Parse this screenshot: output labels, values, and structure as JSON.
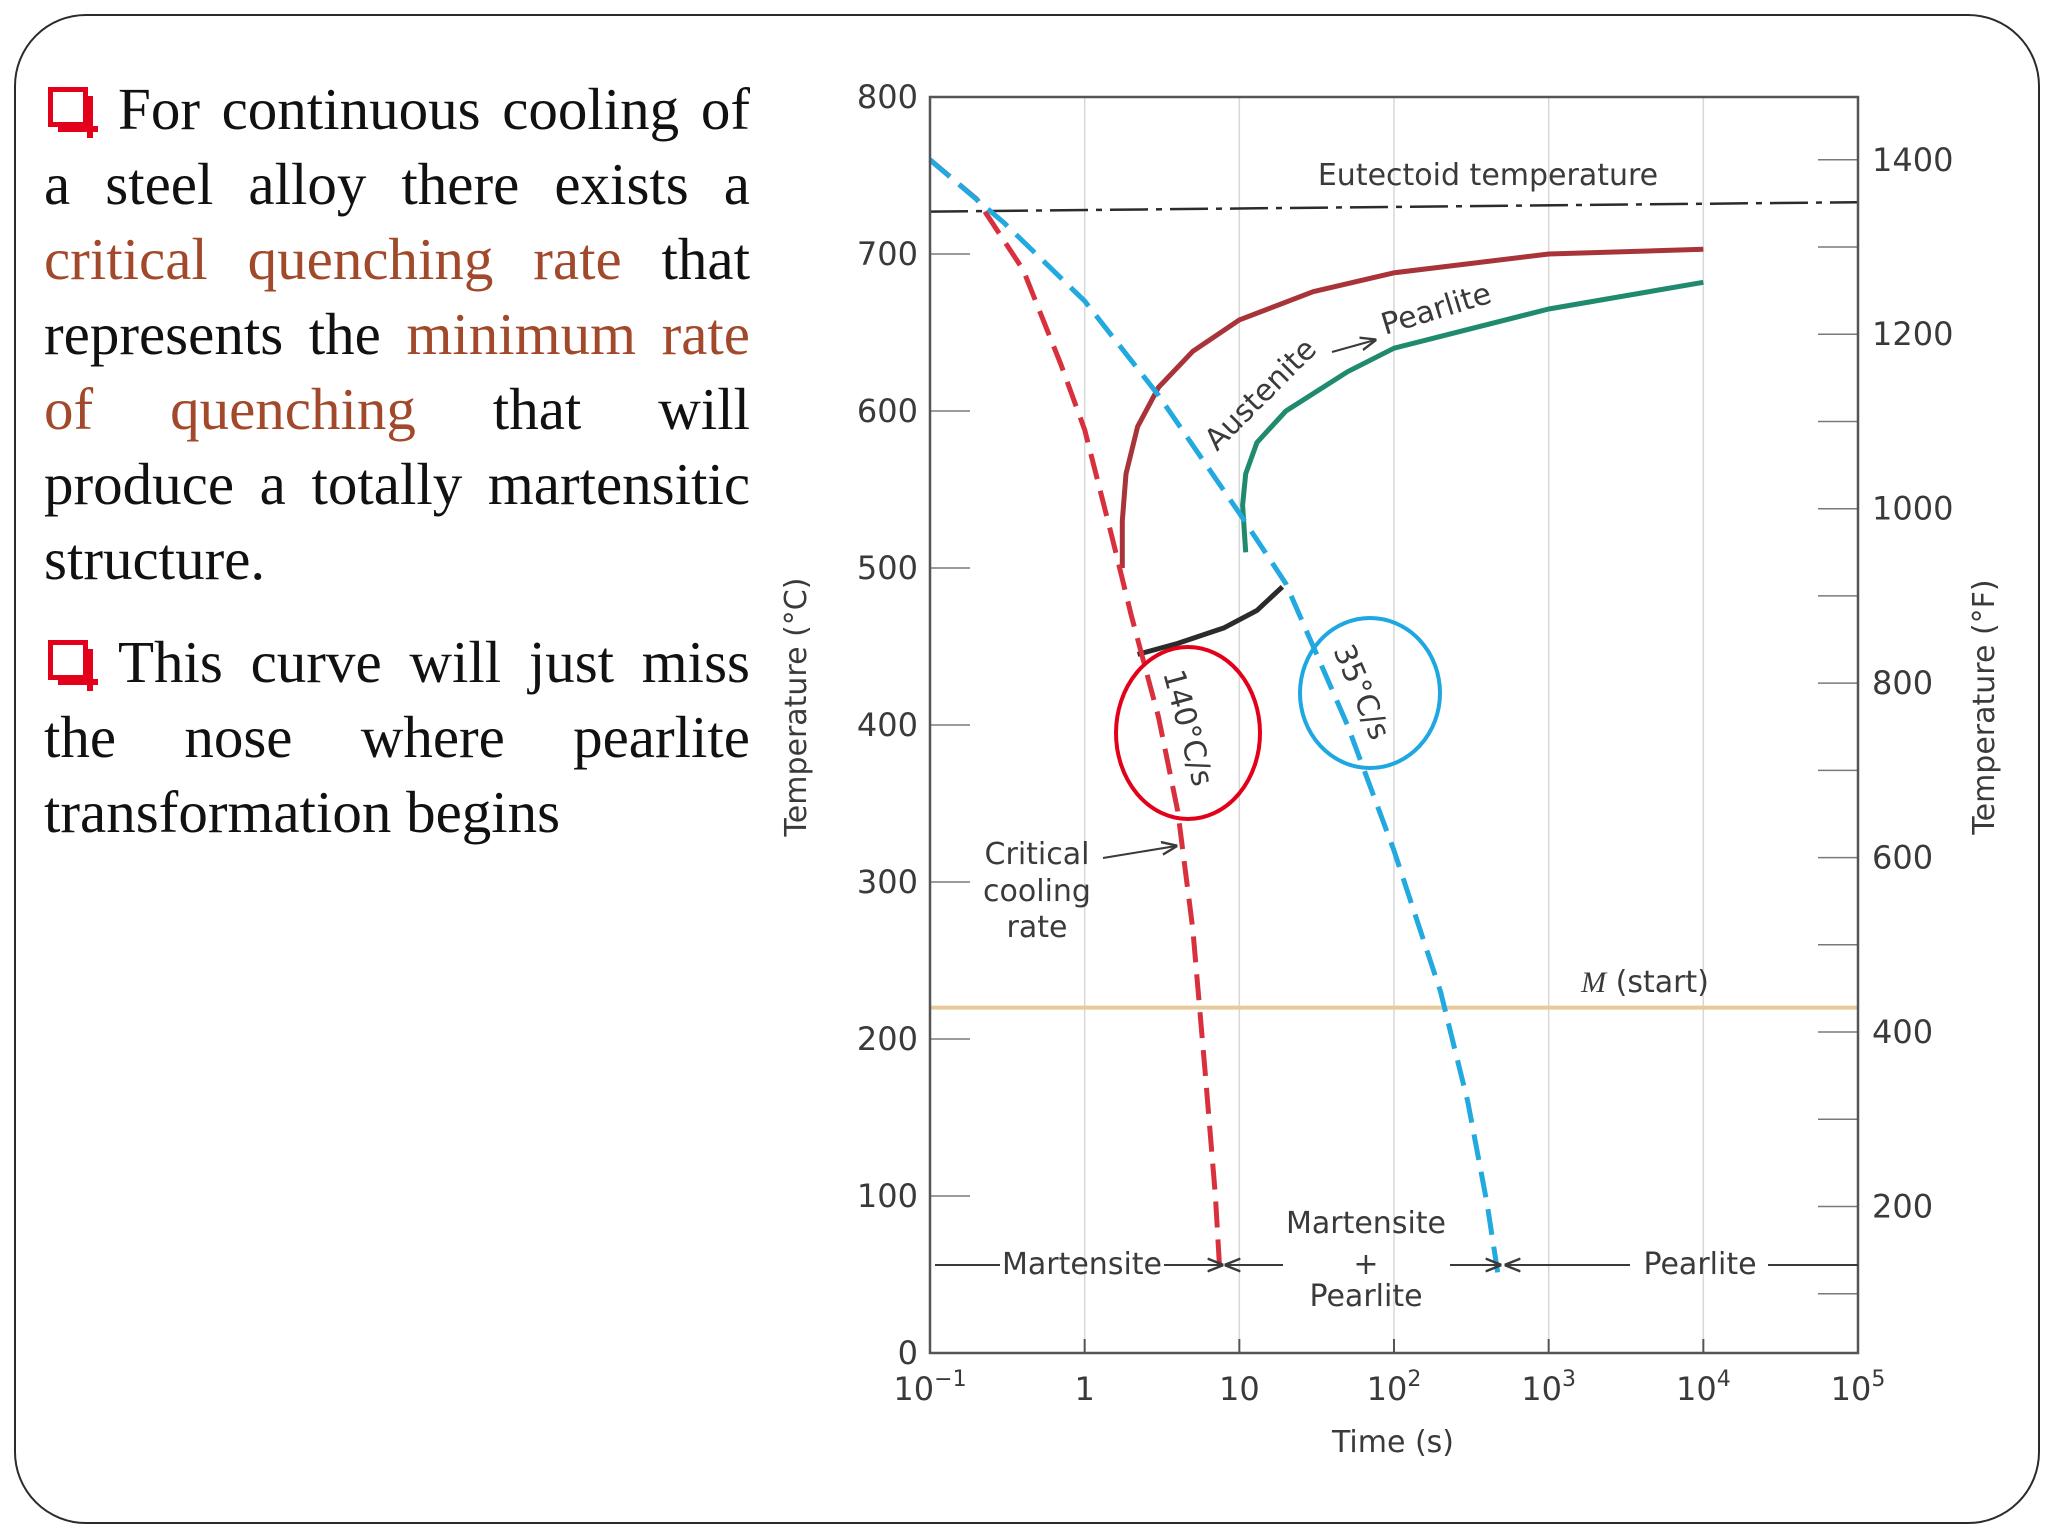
{
  "text_panel": {
    "bullet1": {
      "part1": "For continuous cooling of a steel alloy there exists a ",
      "highlight1": "critical quenching rate",
      "part2": " that represents the ",
      "highlight2": "minimum rate of quenching",
      "part3": " that will produce a totally martensitic structure."
    },
    "bullet2": "This curve will just miss the nose where pearlite transformation begins",
    "bullet_icon": "hollow-square-bullet-icon",
    "bullet_color": "#e3001b",
    "highlight_color": "#a1492a"
  },
  "chart_data": {
    "type": "line",
    "x_scale": "log",
    "xlabel": "Time (s)",
    "ylabel": "Temperature (°C)",
    "ylabel_right": "Temperature (°F)",
    "xlim": [
      0.1,
      100000
    ],
    "ylim": [
      0,
      800
    ],
    "x_ticks": [
      {
        "value": 0.1,
        "label_base": "10",
        "label_exp": "−1"
      },
      {
        "value": 1,
        "label_base": "1",
        "label_exp": ""
      },
      {
        "value": 10,
        "label_base": "10",
        "label_exp": ""
      },
      {
        "value": 100,
        "label_base": "10",
        "label_exp": "2"
      },
      {
        "value": 1000,
        "label_base": "10",
        "label_exp": "3"
      },
      {
        "value": 10000,
        "label_base": "10",
        "label_exp": "4"
      },
      {
        "value": 100000,
        "label_base": "10",
        "label_exp": "5"
      }
    ],
    "y_ticks": [
      0,
      100,
      200,
      300,
      400,
      500,
      600,
      700,
      800
    ],
    "y_right_ticks": [
      200,
      400,
      600,
      800,
      1000,
      1200,
      1400
    ],
    "grid": true,
    "series": [
      {
        "name": "Austenite → Pearlite",
        "style": "solid",
        "color": "#a8343a",
        "x": [
          1.75,
          1.75,
          1.85,
          2.2,
          3,
          5,
          10,
          30,
          100,
          1000,
          10000
        ],
        "y": [
          500,
          530,
          560,
          590,
          615,
          638,
          658,
          676,
          688,
          700,
          703
        ]
      },
      {
        "name": "",
        "style": "solid",
        "color": "#1f8a6e",
        "x": [
          11,
          10.5,
          11,
          13,
          20,
          50,
          100,
          1000,
          10000
        ],
        "y": [
          510,
          540,
          560,
          580,
          600,
          625,
          640,
          665,
          682
        ]
      },
      {
        "name": "",
        "style": "solid",
        "color": "#2b2b2b",
        "x": [
          2.2,
          4,
          8,
          13,
          19
        ],
        "y": [
          445,
          452,
          462,
          473,
          488
        ]
      },
      {
        "name": "140°C/s",
        "style": "dashed",
        "color": "#d8303d",
        "x": [
          0.1,
          0.2,
          0.4,
          0.7,
          1,
          1.5,
          2,
          3,
          4,
          5,
          6,
          7,
          7.5
        ],
        "y": [
          760,
          735,
          690,
          630,
          588,
          520,
          470,
          405,
          345,
          270,
          180,
          100,
          50
        ]
      },
      {
        "name": "35°C/s",
        "style": "dashed",
        "color": "#22a9df",
        "x": [
          0.1,
          0.3,
          1,
          3,
          10,
          20,
          50,
          100,
          200,
          300,
          400,
          470
        ],
        "y": [
          760,
          720,
          670,
          610,
          535,
          490,
          400,
          320,
          230,
          160,
          95,
          50
        ]
      }
    ],
    "reference_lines": [
      {
        "label": "Eutectoid temperature",
        "style": "dash-dot",
        "y_start": 727,
        "y_end": 733
      },
      {
        "label_italic": "M",
        "label_rest": " (start)",
        "style": "solid",
        "color": "#e8c99a",
        "y": 220
      }
    ],
    "annotations": {
      "austenite": "Austenite",
      "pearlite_upper": "Pearlite",
      "rate_red": "140°C/s",
      "rate_blue": "35°C/s",
      "critical_line1": "Critical",
      "critical_line2": "cooling",
      "critical_line3": "rate",
      "region_martensite": "Martensite",
      "region_mix_line1": "Martensite",
      "region_mix_line2": "+",
      "region_mix_line3": "Pearlite",
      "region_pearlite": "Pearlite"
    },
    "highlight_circles": [
      {
        "color": "#e3001b",
        "around": "140°C/s"
      },
      {
        "color": "#1ea7e0",
        "around": "35°C/s"
      }
    ]
  }
}
